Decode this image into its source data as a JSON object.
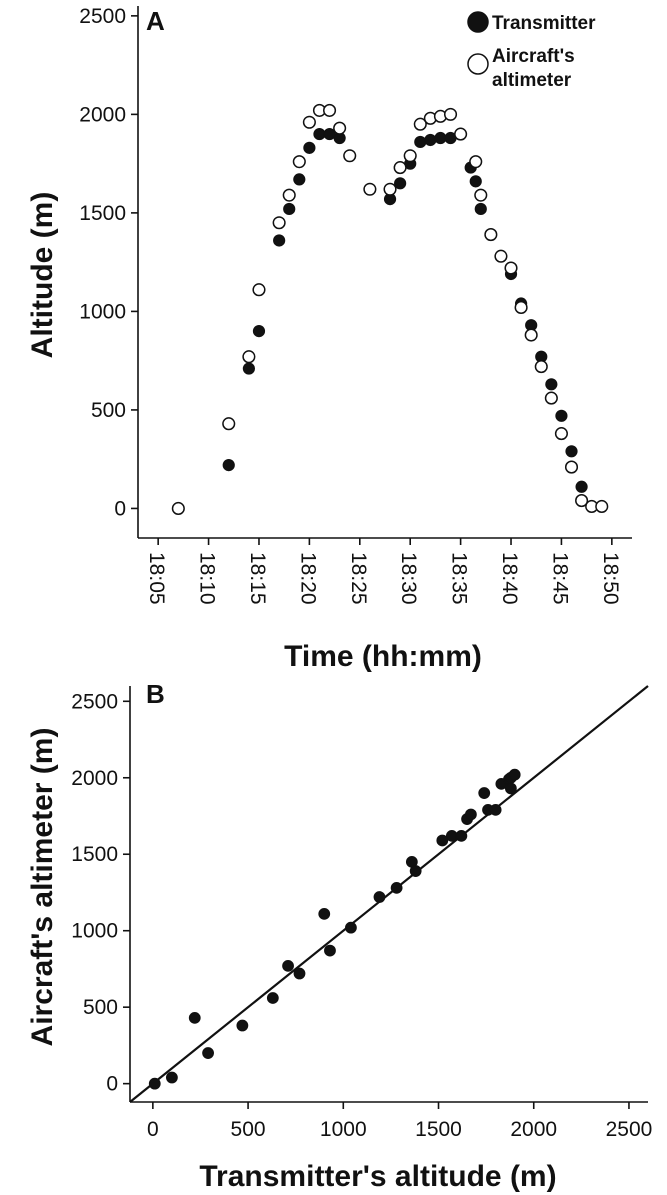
{
  "chart_data": [
    {
      "type": "scatter",
      "panel": "A",
      "xlabel": "Time (hh:mm)",
      "ylabel": "Altitude (m)",
      "x_ticks": [
        "18:05",
        "18:10",
        "18:15",
        "18:20",
        "18:25",
        "18:30",
        "18:35",
        "18:40",
        "18:45",
        "18:50"
      ],
      "y_ticks": [
        "0",
        "500",
        "1000",
        "1500",
        "2000",
        "2500"
      ],
      "xlim": [
        "18:03",
        "18:52"
      ],
      "ylim": [
        -150,
        2550
      ],
      "legend_position": "top-right",
      "series": [
        {
          "name": "Transmitter",
          "marker": "filled-circle",
          "points": [
            [
              "18:12",
              220
            ],
            [
              "18:14",
              710
            ],
            [
              "18:15",
              900
            ],
            [
              "18:17",
              1360
            ],
            [
              "18:18",
              1520
            ],
            [
              "18:19",
              1670
            ],
            [
              "18:20",
              1830
            ],
            [
              "18:21",
              1900
            ],
            [
              "18:22",
              1900
            ],
            [
              "18:23",
              1880
            ],
            [
              "18:28",
              1570
            ],
            [
              "18:29",
              1650
            ],
            [
              "18:30",
              1750
            ],
            [
              "18:31",
              1860
            ],
            [
              "18:32",
              1870
            ],
            [
              "18:33",
              1880
            ],
            [
              "18:34",
              1880
            ],
            [
              "18:36",
              1730
            ],
            [
              "18:36.5",
              1660
            ],
            [
              "18:37",
              1520
            ],
            [
              "18:40",
              1190
            ],
            [
              "18:41",
              1040
            ],
            [
              "18:42",
              930
            ],
            [
              "18:43",
              770
            ],
            [
              "18:44",
              630
            ],
            [
              "18:45",
              470
            ],
            [
              "18:46",
              290
            ],
            [
              "18:47",
              110
            ]
          ]
        },
        {
          "name": "Aircraft's altimeter",
          "marker": "open-circle",
          "points": [
            [
              "18:07",
              0
            ],
            [
              "18:12",
              430
            ],
            [
              "18:14",
              770
            ],
            [
              "18:15",
              1110
            ],
            [
              "18:17",
              1450
            ],
            [
              "18:18",
              1590
            ],
            [
              "18:19",
              1760
            ],
            [
              "18:20",
              1960
            ],
            [
              "18:21",
              2020
            ],
            [
              "18:22",
              2020
            ],
            [
              "18:23",
              1930
            ],
            [
              "18:24",
              1790
            ],
            [
              "18:26",
              1620
            ],
            [
              "18:28",
              1620
            ],
            [
              "18:29",
              1730
            ],
            [
              "18:30",
              1790
            ],
            [
              "18:31",
              1950
            ],
            [
              "18:32",
              1980
            ],
            [
              "18:33",
              1990
            ],
            [
              "18:34",
              2000
            ],
            [
              "18:35",
              1900
            ],
            [
              "18:36.5",
              1760
            ],
            [
              "18:37",
              1590
            ],
            [
              "18:38",
              1390
            ],
            [
              "18:39",
              1280
            ],
            [
              "18:40",
              1220
            ],
            [
              "18:41",
              1020
            ],
            [
              "18:42",
              880
            ],
            [
              "18:43",
              720
            ],
            [
              "18:44",
              560
            ],
            [
              "18:45",
              380
            ],
            [
              "18:46",
              210
            ],
            [
              "18:47",
              40
            ],
            [
              "18:48",
              10
            ],
            [
              "18:49",
              10
            ]
          ]
        }
      ]
    },
    {
      "type": "scatter",
      "panel": "B",
      "xlabel": "Transmitter's altitude (m)",
      "ylabel": "Aircraft's altimeter (m)",
      "x_ticks": [
        "0",
        "500",
        "1000",
        "1500",
        "2000",
        "2500"
      ],
      "y_ticks": [
        "0",
        "500",
        "1000",
        "1500",
        "2000",
        "2500"
      ],
      "xlim": [
        -120,
        2600
      ],
      "ylim": [
        -120,
        2600
      ],
      "reference_line": {
        "type": "identity",
        "from": [
          -120,
          -120
        ],
        "to": [
          2600,
          2600
        ]
      },
      "series": [
        {
          "marker": "filled-circle",
          "points": [
            [
              10,
              0
            ],
            [
              100,
              40
            ],
            [
              220,
              430
            ],
            [
              290,
              200
            ],
            [
              470,
              380
            ],
            [
              630,
              560
            ],
            [
              710,
              770
            ],
            [
              770,
              720
            ],
            [
              900,
              1110
            ],
            [
              930,
              870
            ],
            [
              1040,
              1020
            ],
            [
              1190,
              1220
            ],
            [
              1280,
              1280
            ],
            [
              1360,
              1450
            ],
            [
              1380,
              1390
            ],
            [
              1520,
              1590
            ],
            [
              1570,
              1620
            ],
            [
              1620,
              1620
            ],
            [
              1650,
              1730
            ],
            [
              1670,
              1760
            ],
            [
              1740,
              1900
            ],
            [
              1760,
              1790
            ],
            [
              1800,
              1790
            ],
            [
              1830,
              1960
            ],
            [
              1870,
              1990
            ],
            [
              1880,
              1930
            ],
            [
              1880,
              2000
            ],
            [
              1900,
              2020
            ]
          ]
        }
      ]
    }
  ]
}
